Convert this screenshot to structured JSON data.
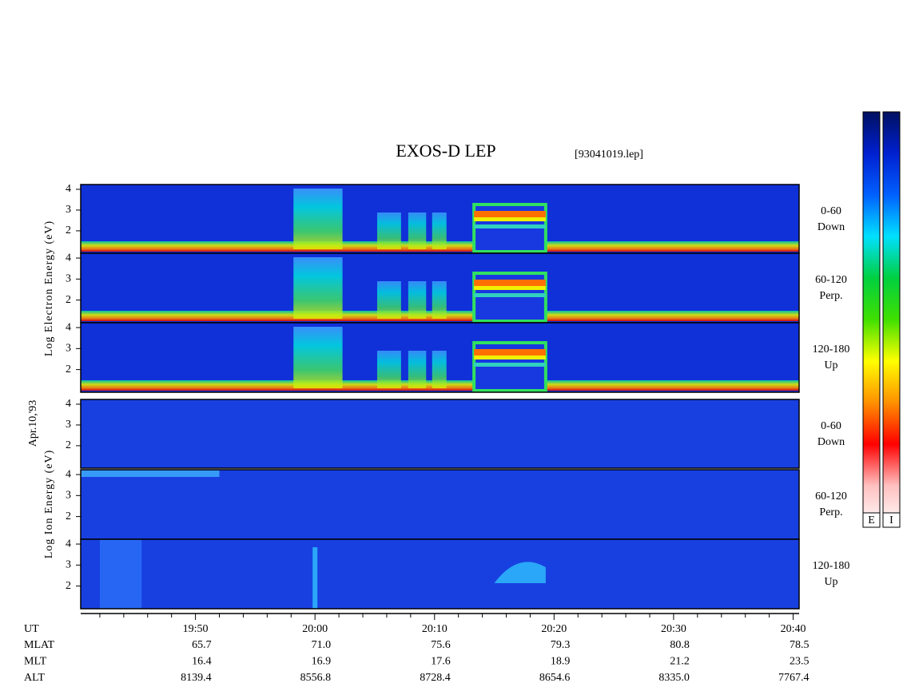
{
  "chart_data": {
    "type": "spectrogram",
    "title": "EXOS-D LEP",
    "subtitle": "[93041019.lep]",
    "date": "Apr.10,'93",
    "xlim": [
      1180.4,
      1240.5
    ],
    "xticks": [
      {
        "value": 1190,
        "label": "19:50"
      },
      {
        "value": 1200,
        "label": "20:00"
      },
      {
        "value": 1210,
        "label": "20:10"
      },
      {
        "value": 1220,
        "label": "20:20"
      },
      {
        "value": 1230,
        "label": "20:30"
      },
      {
        "value": 1240,
        "label": "20:40"
      }
    ],
    "xminorticks": [
      1182,
      1184,
      1186,
      1188,
      1192,
      1194,
      1196,
      1198,
      1202,
      1204,
      1206,
      1208,
      1212,
      1214,
      1216,
      1218,
      1222,
      1224,
      1226,
      1228,
      1232,
      1234,
      1236,
      1238
    ],
    "ylim": [
      0.92,
      4.23
    ],
    "yticks": [
      2,
      3,
      4
    ],
    "groups": [
      {
        "ylabel": "Log Electron Energy (eV)",
        "panels": [
          {
            "pitch": "0-60",
            "direction": "Down"
          },
          {
            "pitch": "60-120",
            "direction": "Perp."
          },
          {
            "pitch": "120-180",
            "direction": "Up"
          }
        ]
      },
      {
        "ylabel": "Log Ion Energy (eV)",
        "panels": [
          {
            "pitch": "0-60",
            "direction": "Down"
          },
          {
            "pitch": "60-120",
            "direction": "Perp."
          },
          {
            "pitch": "120-180",
            "direction": "Up"
          }
        ]
      }
    ],
    "orbit": {
      "x_label": "UT",
      "rows": [
        {
          "name": "MLAT",
          "values": [
            "65.7",
            "71.0",
            "75.6",
            "79.3",
            "80.8",
            "78.5"
          ]
        },
        {
          "name": "MLT",
          "values": [
            "16.4",
            "16.9",
            "17.6",
            "18.9",
            "21.2",
            "23.5"
          ]
        },
        {
          "name": "ALT",
          "values": [
            "8139.4",
            "8556.8",
            "8728.4",
            "8654.6",
            "8335.0",
            "7767.4"
          ]
        }
      ]
    },
    "colorbar": {
      "colors": [
        "#001060",
        "#0020d0",
        "#0060ff",
        "#00e0ff",
        "#00d040",
        "#40e000",
        "#ffff00",
        "#ff9000",
        "#ff0000",
        "#ffc0c0",
        "#ffffff"
      ],
      "labels": [
        "E",
        "I"
      ]
    }
  }
}
